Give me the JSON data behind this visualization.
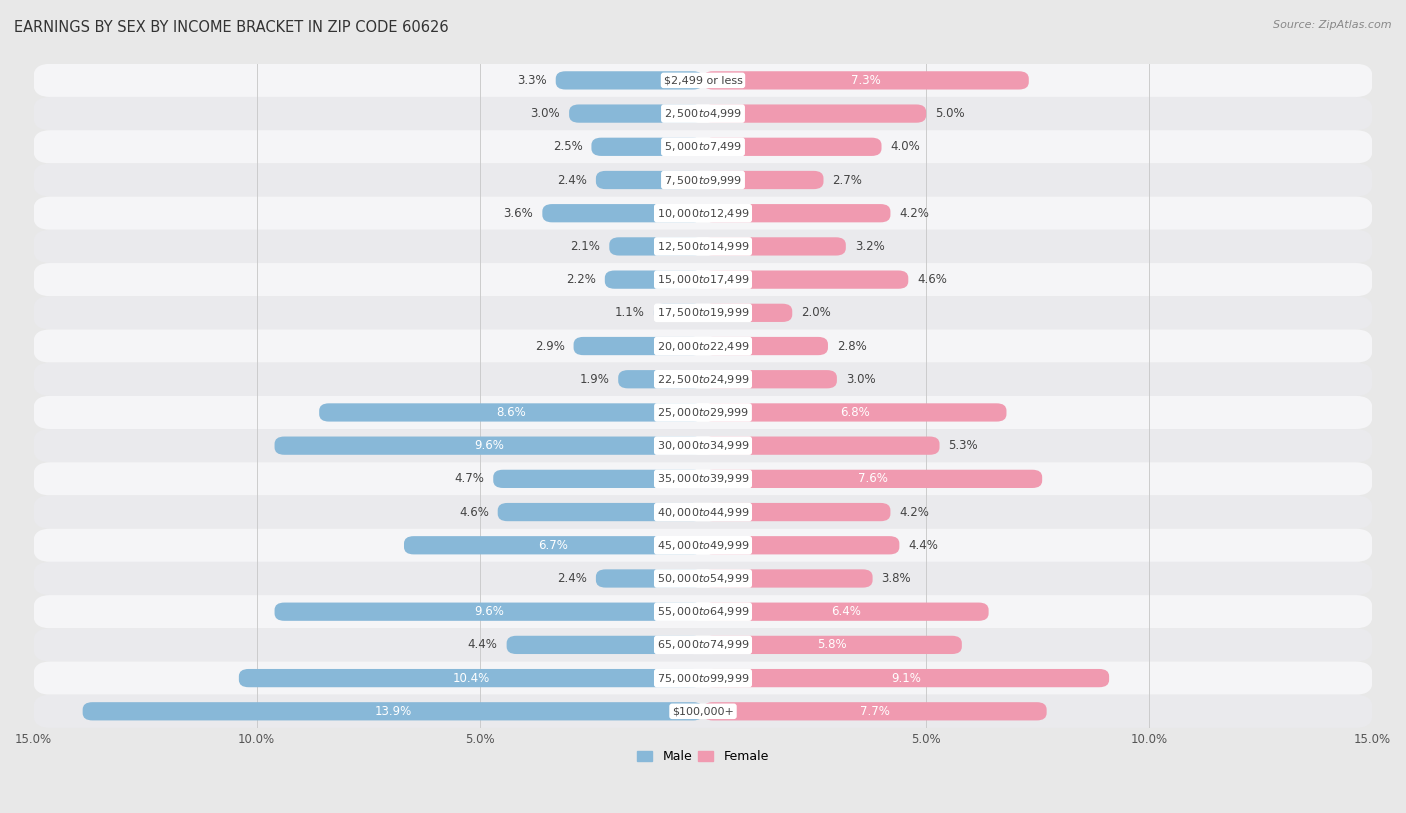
{
  "title": "EARNINGS BY SEX BY INCOME BRACKET IN ZIP CODE 60626",
  "source": "Source: ZipAtlas.com",
  "categories": [
    "$2,499 or less",
    "$2,500 to $4,999",
    "$5,000 to $7,499",
    "$7,500 to $9,999",
    "$10,000 to $12,499",
    "$12,500 to $14,999",
    "$15,000 to $17,499",
    "$17,500 to $19,999",
    "$20,000 to $22,499",
    "$22,500 to $24,999",
    "$25,000 to $29,999",
    "$30,000 to $34,999",
    "$35,000 to $39,999",
    "$40,000 to $44,999",
    "$45,000 to $49,999",
    "$50,000 to $54,999",
    "$55,000 to $64,999",
    "$65,000 to $74,999",
    "$75,000 to $99,999",
    "$100,000+"
  ],
  "male_values": [
    3.3,
    3.0,
    2.5,
    2.4,
    3.6,
    2.1,
    2.2,
    1.1,
    2.9,
    1.9,
    8.6,
    9.6,
    4.7,
    4.6,
    6.7,
    2.4,
    9.6,
    4.4,
    10.4,
    13.9
  ],
  "female_values": [
    7.3,
    5.0,
    4.0,
    2.7,
    4.2,
    3.2,
    4.6,
    2.0,
    2.8,
    3.0,
    6.8,
    5.3,
    7.6,
    4.2,
    4.4,
    3.8,
    6.4,
    5.8,
    9.1,
    7.7
  ],
  "male_color": "#88b8d8",
  "female_color": "#f09ab0",
  "male_label": "Male",
  "female_label": "Female",
  "xlim": 15.0,
  "background_color": "#e8e8e8",
  "row_color_light": "#f5f5f7",
  "row_color_dark": "#eaeaed",
  "title_fontsize": 10.5,
  "label_fontsize": 8.5,
  "value_fontsize": 8.5,
  "source_fontsize": 8,
  "inside_label_threshold": 5.5
}
